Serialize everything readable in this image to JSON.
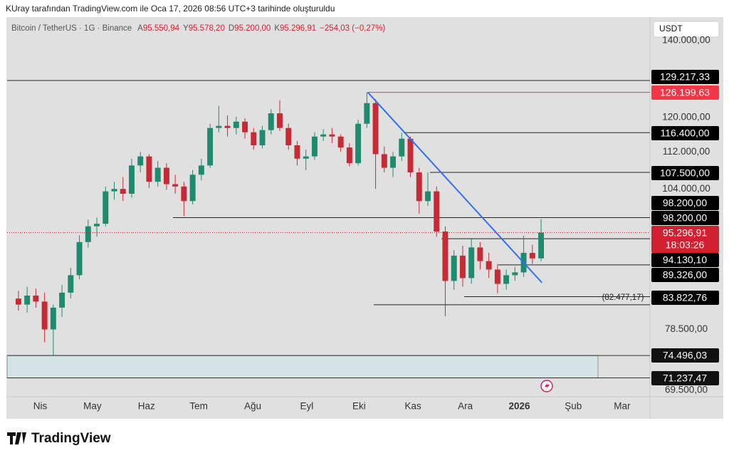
{
  "header": "KUray tarafından TradingView.com ile Oca 17, 2026 08:56 UTC+3 tarihinde oluşturuldu",
  "footer": "TradingView",
  "chart_data": {
    "type": "candlestick",
    "symbol": "Bitcoin / TetherUS · 1G · Binance",
    "ohlc_legend": [
      {
        "key": "A",
        "value": "95.550,94"
      },
      {
        "key": "Y",
        "value": "95.578,20"
      },
      {
        "key": "D",
        "value": "95.200,00"
      },
      {
        "key": "K",
        "value": "95.296,91"
      }
    ],
    "change": "−254,03 (−0,27%)",
    "currency": "USDT",
    "log_scale": true,
    "up_color": "#1e8a6e",
    "down_color": "#c62a35",
    "x": [
      -15,
      -10,
      -5,
      0,
      5,
      10,
      15,
      20,
      25,
      30,
      35,
      40,
      45,
      50,
      55,
      60,
      65,
      70,
      75,
      80,
      85,
      90,
      95,
      100,
      105,
      110,
      115,
      120,
      125,
      130,
      135,
      140,
      145,
      150,
      155,
      160,
      165,
      170,
      175,
      180,
      185,
      190,
      195,
      200,
      205,
      210,
      215,
      220,
      225,
      230,
      235,
      240,
      245,
      250,
      255,
      260,
      265,
      270,
      275,
      280,
      285
    ],
    "open": [
      83500,
      82500,
      84000,
      83000,
      78500,
      82000,
      84500,
      87500,
      93500,
      96500,
      97000,
      103500,
      104000,
      103000,
      109000,
      111000,
      105500,
      108500,
      105000,
      104500,
      101500,
      107000,
      109000,
      117500,
      118000,
      117500,
      119000,
      116500,
      113500,
      117000,
      121000,
      117500,
      113500,
      110500,
      111000,
      115500,
      116000,
      115500,
      113000,
      109500,
      118500,
      123500,
      111500,
      108500,
      111000,
      115000,
      107500,
      101500,
      103500,
      95500,
      86500,
      91000,
      87000,
      92500,
      90000,
      88500,
      86000,
      87500,
      88000,
      91500,
      90500
    ],
    "high": [
      84800,
      85500,
      85200,
      84500,
      82500,
      85800,
      88800,
      94800,
      97800,
      98200,
      104500,
      105500,
      106500,
      110500,
      112000,
      111500,
      110000,
      109500,
      107000,
      105500,
      108000,
      110500,
      118500,
      122800,
      120500,
      120200,
      119800,
      117500,
      118000,
      122000,
      124200,
      118500,
      114500,
      112500,
      116500,
      117200,
      117500,
      116000,
      114000,
      119500,
      126200,
      124500,
      113200,
      112000,
      116400,
      115500,
      108500,
      107500,
      104500,
      96500,
      92000,
      92800,
      94100,
      93500,
      91500,
      89500,
      88500,
      89000,
      94700,
      93000,
      97900
    ],
    "low": [
      81500,
      81200,
      82000,
      76500,
      74500,
      80500,
      83500,
      86800,
      92500,
      94500,
      96500,
      101800,
      101500,
      102200,
      107500,
      104200,
      104500,
      103800,
      103000,
      98500,
      100800,
      105800,
      108500,
      116500,
      115500,
      116000,
      115000,
      112500,
      112800,
      116000,
      116800,
      112500,
      109000,
      108000,
      110200,
      114500,
      114000,
      112000,
      108800,
      109000,
      117500,
      104000,
      107500,
      106500,
      110000,
      106500,
      99000,
      100500,
      94500,
      80600,
      85000,
      85500,
      86000,
      88500,
      87000,
      84400,
      85000,
      86500,
      87200,
      89500,
      90000
    ],
    "close": [
      82500,
      84000,
      83000,
      78500,
      82000,
      84500,
      87500,
      93500,
      96500,
      97000,
      103500,
      104000,
      103000,
      109000,
      111000,
      105500,
      108500,
      105000,
      104500,
      101500,
      107000,
      109000,
      117500,
      118000,
      117500,
      119000,
      116500,
      113500,
      117000,
      121000,
      117500,
      113500,
      110500,
      111000,
      115500,
      116000,
      115500,
      113000,
      109500,
      118500,
      123500,
      111500,
      108500,
      111000,
      115000,
      107500,
      101500,
      103500,
      95500,
      86500,
      91000,
      87000,
      92500,
      90000,
      88500,
      86000,
      87500,
      88000,
      91500,
      90500,
      95300
    ],
    "xlim": [
      -19,
      350
    ],
    "ylim": [
      68600,
      146500
    ],
    "xticks": [
      {
        "value": 0,
        "label": "Nis"
      },
      {
        "value": 30,
        "label": "May"
      },
      {
        "value": 61,
        "label": "Haz"
      },
      {
        "value": 91,
        "label": "Tem"
      },
      {
        "value": 122,
        "label": "Ağu"
      },
      {
        "value": 153,
        "label": "Eyl"
      },
      {
        "value": 183,
        "label": "Eki"
      },
      {
        "value": 214,
        "label": "Kas"
      },
      {
        "value": 244,
        "label": "Ara"
      },
      {
        "value": 275,
        "label": "2026"
      },
      {
        "value": 306,
        "label": "Şub"
      },
      {
        "value": 334,
        "label": "Mar"
      }
    ],
    "yticks": [
      {
        "value": 140000,
        "label": "140.000,00"
      },
      {
        "value": 120000,
        "label": "120.000,00"
      },
      {
        "value": 112000,
        "label": "112.000,00"
      },
      {
        "value": 104000,
        "label": "104.000,00"
      },
      {
        "value": 78500,
        "label": "78.500,00"
      },
      {
        "value": 69500,
        "label": "69.500,00"
      }
    ],
    "levels": [
      {
        "value": 129217.33,
        "label": "129.217,33",
        "color": "#000000"
      },
      {
        "value": 126199.63,
        "label": "126.199,63",
        "color": "#f23645"
      },
      {
        "value": 116400,
        "label": "116.400,00",
        "color": "#000000"
      },
      {
        "value": 107500,
        "label": "107.500,00",
        "color": "#000000"
      },
      {
        "value": 98200,
        "label": "98.200,00",
        "color": "#000000"
      },
      {
        "value": 98200,
        "label": "98.200,00",
        "color": "#000000"
      },
      {
        "value": 94130.1,
        "label": "94.130,10",
        "color": "#000000"
      },
      {
        "value": 89326,
        "label": "89.326,00",
        "color": "#000000"
      },
      {
        "value": 83822.76,
        "label": "83.822,76",
        "color": "#000000"
      }
    ],
    "last_price": {
      "value": 95296.91,
      "label": "95.296,91",
      "color": "#d32030"
    },
    "countdown": "18:03:26",
    "annotation": {
      "value": 82477.17,
      "label": "(82.477,17)"
    },
    "zone": {
      "top": 74496.03,
      "top_label": "74.496,03",
      "bottom": 71237.47,
      "bottom_label": "71.237,47",
      "color": "#d3e3e6"
    },
    "trendline": {
      "x": [
        188,
        288
      ],
      "values": [
        126200,
        86200
      ],
      "color": "#2f6ff0"
    }
  }
}
